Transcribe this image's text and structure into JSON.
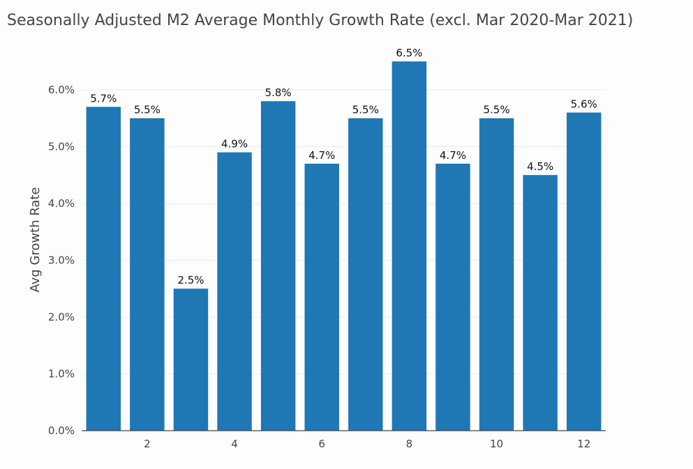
{
  "chart_data": {
    "type": "bar",
    "title": "Seasonally Adjusted M2 Average Monthly Growth Rate (excl. Mar 2020-Mar 2021)",
    "xlabel": "",
    "ylabel": "Avg Growth Rate",
    "categories": [
      1,
      2,
      3,
      4,
      5,
      6,
      7,
      8,
      9,
      10,
      11,
      12
    ],
    "values": [
      5.7,
      5.5,
      2.5,
      4.9,
      5.8,
      4.7,
      5.5,
      6.5,
      4.7,
      5.5,
      4.5,
      5.6
    ],
    "data_labels": [
      "5.7%",
      "5.5%",
      "2.5%",
      "4.9%",
      "5.8%",
      "4.7%",
      "5.5%",
      "6.5%",
      "4.7%",
      "5.5%",
      "4.5%",
      "5.6%"
    ],
    "ylim": [
      0,
      6.6
    ],
    "y_ticks": [
      0,
      1,
      2,
      3,
      4,
      5,
      6
    ],
    "y_tick_labels": [
      "0.0%",
      "1.0%",
      "2.0%",
      "3.0%",
      "4.0%",
      "5.0%",
      "6.0%"
    ],
    "x_ticks": [
      2,
      4,
      6,
      8,
      10,
      12
    ],
    "x_tick_labels": [
      "2",
      "4",
      "6",
      "8",
      "10",
      "12"
    ],
    "grid": true,
    "bar_color": "#1f77b4"
  }
}
